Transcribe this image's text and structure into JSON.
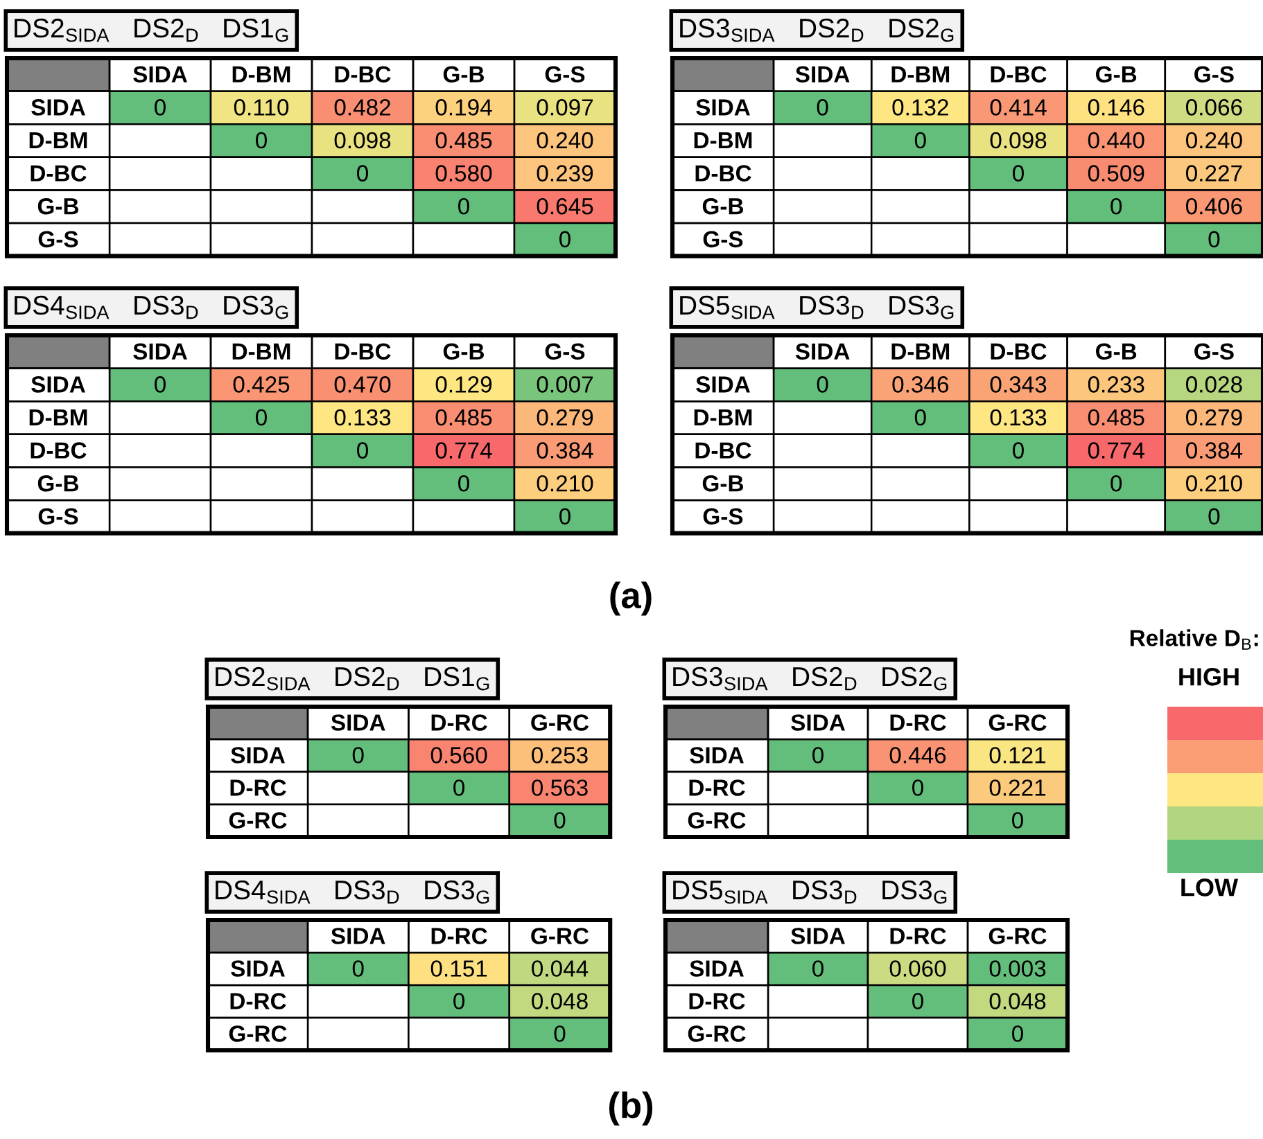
{
  "chart_data": [
    {
      "type": "heatmap",
      "title": "DS2$_{SIDA}$   DS2$_{D}$   DS1$_{G}$",
      "categories": [
        "SIDA",
        "D-BM",
        "D-BC",
        "G-B",
        "G-S"
      ],
      "y_categories": [
        "SIDA",
        "D-BM",
        "D-BC",
        "G-B",
        "G-S"
      ],
      "cells": [
        [
          0,
          0.11,
          0.482,
          0.194,
          0.097
        ],
        [
          null,
          0,
          0.098,
          0.485,
          0.24
        ],
        [
          null,
          null,
          0,
          0.58,
          0.239
        ],
        [
          null,
          null,
          null,
          0,
          0.645
        ],
        [
          null,
          null,
          null,
          null,
          0
        ]
      ],
      "cell_labels": [
        [
          "0",
          "0.110",
          "0.482",
          "0.194",
          "0.097"
        ],
        [
          null,
          "0",
          "0.098",
          "0.485",
          "0.240"
        ],
        [
          null,
          null,
          "0",
          "0.580",
          "0.239"
        ],
        [
          null,
          null,
          null,
          "0",
          "0.645"
        ],
        [
          null,
          null,
          null,
          null,
          "0"
        ]
      ]
    },
    {
      "type": "heatmap",
      "title": "DS3$_{SIDA}$   DS2$_{D}$   DS2$_{G}$",
      "categories": [
        "SIDA",
        "D-BM",
        "D-BC",
        "G-B",
        "G-S"
      ],
      "y_categories": [
        "SIDA",
        "D-BM",
        "D-BC",
        "G-B",
        "G-S"
      ],
      "cells": [
        [
          0,
          0.132,
          0.414,
          0.146,
          0.066
        ],
        [
          null,
          0,
          0.098,
          0.44,
          0.24
        ],
        [
          null,
          null,
          0,
          0.509,
          0.227
        ],
        [
          null,
          null,
          null,
          0,
          0.406
        ],
        [
          null,
          null,
          null,
          null,
          0
        ]
      ],
      "cell_labels": [
        [
          "0",
          "0.132",
          "0.414",
          "0.146",
          "0.066"
        ],
        [
          null,
          "0",
          "0.098",
          "0.440",
          "0.240"
        ],
        [
          null,
          null,
          "0",
          "0.509",
          "0.227"
        ],
        [
          null,
          null,
          null,
          "0",
          "0.406"
        ],
        [
          null,
          null,
          null,
          null,
          "0"
        ]
      ]
    },
    {
      "type": "heatmap",
      "title": "DS4$_{SIDA}$   DS3$_{D}$   DS3$_{G}$",
      "categories": [
        "SIDA",
        "D-BM",
        "D-BC",
        "G-B",
        "G-S"
      ],
      "y_categories": [
        "SIDA",
        "D-BM",
        "D-BC",
        "G-B",
        "G-S"
      ],
      "cells": [
        [
          0,
          0.425,
          0.47,
          0.129,
          0.007
        ],
        [
          null,
          0,
          0.133,
          0.485,
          0.279
        ],
        [
          null,
          null,
          0,
          0.774,
          0.384
        ],
        [
          null,
          null,
          null,
          0,
          0.21
        ],
        [
          null,
          null,
          null,
          null,
          0
        ]
      ],
      "cell_labels": [
        [
          "0",
          "0.425",
          "0.470",
          "0.129",
          "0.007"
        ],
        [
          null,
          "0",
          "0.133",
          "0.485",
          "0.279"
        ],
        [
          null,
          null,
          "0",
          "0.774",
          "0.384"
        ],
        [
          null,
          null,
          null,
          "0",
          "0.210"
        ],
        [
          null,
          null,
          null,
          null,
          "0"
        ]
      ]
    },
    {
      "type": "heatmap",
      "title": "DS5$_{SIDA}$   DS3$_{D}$   DS3$_{G}$",
      "categories": [
        "SIDA",
        "D-BM",
        "D-BC",
        "G-B",
        "G-S"
      ],
      "y_categories": [
        "SIDA",
        "D-BM",
        "D-BC",
        "G-B",
        "G-S"
      ],
      "cells": [
        [
          0,
          0.346,
          0.343,
          0.233,
          0.028
        ],
        [
          null,
          0,
          0.133,
          0.485,
          0.279
        ],
        [
          null,
          null,
          0,
          0.774,
          0.384
        ],
        [
          null,
          null,
          null,
          0,
          0.21
        ],
        [
          null,
          null,
          null,
          null,
          0
        ]
      ],
      "cell_labels": [
        [
          "0",
          "0.346",
          "0.343",
          "0.233",
          "0.028"
        ],
        [
          null,
          "0",
          "0.133",
          "0.485",
          "0.279"
        ],
        [
          null,
          null,
          "0",
          "0.774",
          "0.384"
        ],
        [
          null,
          null,
          null,
          "0",
          "0.210"
        ],
        [
          null,
          null,
          null,
          null,
          "0"
        ]
      ]
    },
    {
      "type": "heatmap",
      "title": "DS2$_{SIDA}$   DS2$_{D}$   DS1$_{G}$",
      "categories": [
        "SIDA",
        "D-RC",
        "G-RC"
      ],
      "y_categories": [
        "SIDA",
        "D-RC",
        "G-RC"
      ],
      "cells": [
        [
          0,
          0.56,
          0.253
        ],
        [
          null,
          0,
          0.563
        ],
        [
          null,
          null,
          0
        ]
      ],
      "cell_labels": [
        [
          "0",
          "0.560",
          "0.253"
        ],
        [
          null,
          "0",
          "0.563"
        ],
        [
          null,
          null,
          "0"
        ]
      ]
    },
    {
      "type": "heatmap",
      "title": "DS3$_{SIDA}$   DS2$_{D}$   DS2$_{G}$",
      "categories": [
        "SIDA",
        "D-RC",
        "G-RC"
      ],
      "y_categories": [
        "SIDA",
        "D-RC",
        "G-RC"
      ],
      "cells": [
        [
          0,
          0.446,
          0.121
        ],
        [
          null,
          0,
          0.221
        ],
        [
          null,
          null,
          0
        ]
      ],
      "cell_labels": [
        [
          "0",
          "0.446",
          "0.121"
        ],
        [
          null,
          "0",
          "0.221"
        ],
        [
          null,
          null,
          "0"
        ]
      ]
    },
    {
      "type": "heatmap",
      "title": "DS4$_{SIDA}$   DS3$_{D}$   DS3$_{G}$",
      "categories": [
        "SIDA",
        "D-RC",
        "G-RC"
      ],
      "y_categories": [
        "SIDA",
        "D-RC",
        "G-RC"
      ],
      "cells": [
        [
          0,
          0.151,
          0.044
        ],
        [
          null,
          0,
          0.048
        ],
        [
          null,
          null,
          0
        ]
      ],
      "cell_labels": [
        [
          "0",
          "0.151",
          "0.044"
        ],
        [
          null,
          "0",
          "0.048"
        ],
        [
          null,
          null,
          "0"
        ]
      ]
    },
    {
      "type": "heatmap",
      "title": "DS5$_{SIDA}$   DS3$_{D}$   DS3$_{G}$",
      "categories": [
        "SIDA",
        "D-RC",
        "G-RC"
      ],
      "y_categories": [
        "SIDA",
        "D-RC",
        "G-RC"
      ],
      "cells": [
        [
          0,
          0.06,
          0.003
        ],
        [
          null,
          0,
          0.048
        ],
        [
          null,
          null,
          0
        ]
      ],
      "cell_labels": [
        [
          "0",
          "0.060",
          "0.003"
        ],
        [
          null,
          "0",
          "0.048"
        ],
        [
          null,
          null,
          "0"
        ]
      ]
    },
    {
      "type": "other",
      "title": "Relative D$_{B}$:",
      "annotations": [
        "HIGH",
        "LOW",
        "(a)",
        "(b)"
      ],
      "colors": [
        "#f8696b",
        "#fa9d75",
        "#fee782",
        "#b1d580",
        "#63be7b"
      ]
    }
  ]
}
